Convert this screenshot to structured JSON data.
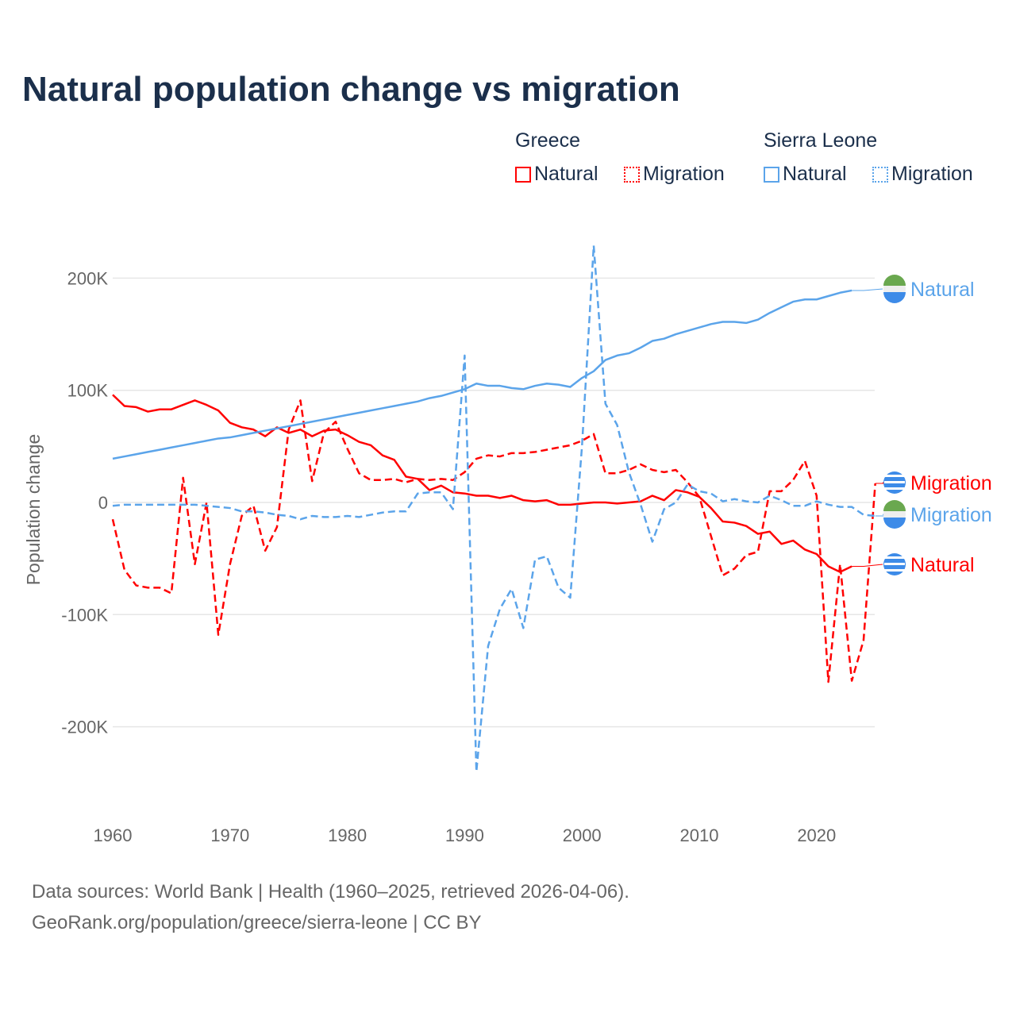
{
  "title": "Natural population change vs migration",
  "legend": {
    "groups": [
      {
        "name": "Greece",
        "color": "#ff0000",
        "items": [
          "Natural",
          "Migration"
        ]
      },
      {
        "name": "Sierra Leone",
        "color": "#5ba4ea",
        "items": [
          "Natural",
          "Migration"
        ]
      }
    ]
  },
  "footer": {
    "line1": "Data sources: World Bank | Health (1960–2025, retrieved 2026-04-06).",
    "line2": "GeoRank.org/population/greece/sierra-leone | CC BY"
  },
  "chart_data": {
    "type": "line",
    "title": "Natural population change vs migration",
    "xlabel": "",
    "ylabel": "Population change",
    "xlim": [
      1960,
      2025
    ],
    "ylim": [
      -250000,
      235000
    ],
    "xticks": [
      1960,
      1970,
      1980,
      1990,
      2000,
      2010,
      2020
    ],
    "yticks": [
      {
        "v": 200000,
        "label": "200K"
      },
      {
        "v": 100000,
        "label": "100K"
      },
      {
        "v": 0,
        "label": "0"
      },
      {
        "v": -100000,
        "label": "-100K"
      },
      {
        "v": -200000,
        "label": "-200K"
      }
    ],
    "grid": true,
    "series": [
      {
        "name": "Greece Natural",
        "label": "Natural",
        "country": "Greece",
        "color": "#ff0000",
        "dash": false,
        "start": 1960,
        "values_k": [
          96,
          86,
          85,
          81,
          83,
          83,
          87,
          91,
          87,
          82,
          71,
          67,
          65,
          59,
          67,
          62,
          65,
          59,
          64,
          65,
          60,
          54,
          51,
          42,
          38,
          23,
          21,
          11,
          15,
          9,
          8,
          6,
          6,
          4,
          6,
          2,
          1,
          2,
          -2,
          -2,
          -1,
          0,
          0,
          -1,
          0,
          1,
          6,
          2,
          11,
          9,
          5,
          -5,
          -17,
          -18,
          -21,
          -28,
          -26,
          -37,
          -34,
          -42,
          -46,
          -57,
          -62,
          -57
        ]
      },
      {
        "name": "Greece Migration",
        "label": "Migration",
        "country": "Greece",
        "color": "#ff0000",
        "dash": true,
        "start": 1960,
        "values_k": [
          -15,
          -60,
          -74,
          -76,
          -76,
          -81,
          22,
          -55,
          0,
          -118,
          -55,
          -12,
          -3,
          -43,
          -22,
          65,
          91,
          19,
          62,
          72,
          48,
          26,
          20,
          20,
          21,
          18,
          21,
          20,
          21,
          20,
          27,
          39,
          42,
          41,
          44,
          44,
          45,
          47,
          49,
          51,
          55,
          61,
          26,
          26,
          29,
          34,
          29,
          27,
          29,
          18,
          5,
          -30,
          -65,
          -59,
          -47,
          -44,
          10,
          10,
          20,
          37,
          6,
          -160,
          -55,
          -159,
          -123,
          17
        ]
      },
      {
        "name": "Sierra Leone Natural",
        "label": "Natural",
        "country": "Sierra Leone",
        "color": "#5ba4ea",
        "dash": false,
        "start": 1960,
        "values_k": [
          39,
          41,
          43,
          45,
          47,
          49,
          51,
          53,
          55,
          57,
          58,
          60,
          62,
          64,
          66,
          68,
          70,
          72,
          74,
          76,
          78,
          80,
          82,
          84,
          86,
          88,
          90,
          93,
          95,
          98,
          101,
          106,
          104,
          104,
          102,
          101,
          104,
          106,
          105,
          103,
          111,
          117,
          127,
          131,
          133,
          138,
          144,
          146,
          150,
          153,
          156,
          159,
          161,
          161,
          160,
          163,
          169,
          174,
          179,
          181,
          181,
          184,
          187,
          189
        ]
      },
      {
        "name": "Sierra Leone Migration",
        "label": "Migration",
        "country": "Sierra Leone",
        "color": "#5ba4ea",
        "dash": true,
        "start": 1960,
        "values_k": [
          -3,
          -2,
          -2,
          -2,
          -2,
          -2,
          -2,
          -2,
          -3,
          -4,
          -5,
          -8,
          -8,
          -9,
          -11,
          -12,
          -15,
          -12,
          -13,
          -13,
          -12,
          -13,
          -11,
          -9,
          -8,
          -8,
          8,
          9,
          9,
          -6,
          131,
          -240,
          -128,
          -95,
          -77,
          -112,
          -51,
          -48,
          -76,
          -85,
          50,
          229,
          88,
          69,
          27,
          -2,
          -35,
          -6,
          0,
          16,
          10,
          8,
          1,
          3,
          1,
          0,
          6,
          2,
          -3,
          -3,
          1,
          -2,
          -4,
          -4,
          -11,
          -12
        ]
      }
    ]
  }
}
